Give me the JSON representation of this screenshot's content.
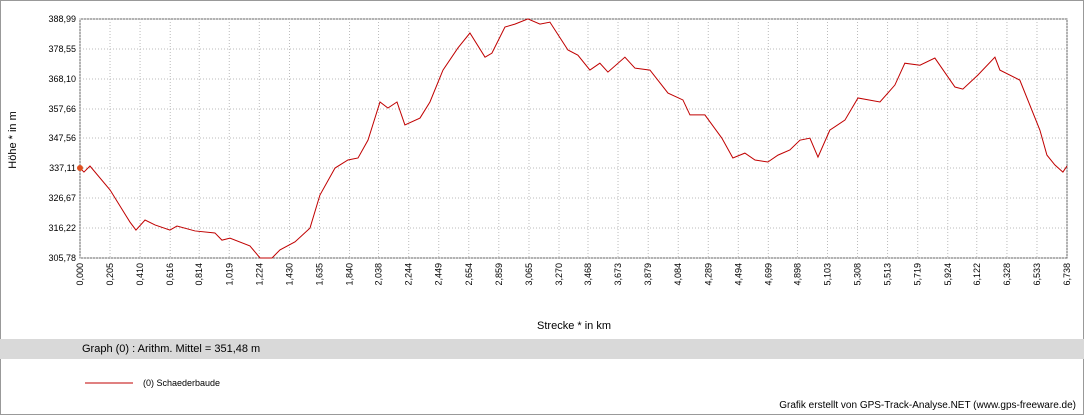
{
  "chart_data": {
    "type": "line",
    "xlabel": "Strecke *  in  km",
    "ylabel": "Höhe *  in  m",
    "stats": "Graph (0) :  Arithm. Mittel = 351,48 m",
    "credit": "Grafik erstellt von GPS-Track-Analyse.NET (www.gps-freeware.de)",
    "grid": true,
    "xlim": [
      0,
      6.738
    ],
    "ylim": [
      305.78,
      388.99
    ],
    "xticks": [
      {
        "value": 0,
        "label": "0,000"
      },
      {
        "value": 0.205,
        "label": "0,205"
      },
      {
        "value": 0.41,
        "label": "0,410"
      },
      {
        "value": 0.616,
        "label": "0,616"
      },
      {
        "value": 0.814,
        "label": "0,814"
      },
      {
        "value": 1.019,
        "label": "1,019"
      },
      {
        "value": 1.224,
        "label": "1,224"
      },
      {
        "value": 1.43,
        "label": "1,430"
      },
      {
        "value": 1.635,
        "label": "1,635"
      },
      {
        "value": 1.84,
        "label": "1,840"
      },
      {
        "value": 2.038,
        "label": "2,038"
      },
      {
        "value": 2.244,
        "label": "2,244"
      },
      {
        "value": 2.449,
        "label": "2,449"
      },
      {
        "value": 2.654,
        "label": "2,654"
      },
      {
        "value": 2.859,
        "label": "2,859"
      },
      {
        "value": 3.065,
        "label": "3,065"
      },
      {
        "value": 3.27,
        "label": "3,270"
      },
      {
        "value": 3.468,
        "label": "3,468"
      },
      {
        "value": 3.673,
        "label": "3,673"
      },
      {
        "value": 3.879,
        "label": "3,879"
      },
      {
        "value": 4.084,
        "label": "4,084"
      },
      {
        "value": 4.289,
        "label": "4,289"
      },
      {
        "value": 4.494,
        "label": "4,494"
      },
      {
        "value": 4.699,
        "label": "4,699"
      },
      {
        "value": 4.898,
        "label": "4,898"
      },
      {
        "value": 5.103,
        "label": "5,103"
      },
      {
        "value": 5.308,
        "label": "5,308"
      },
      {
        "value": 5.513,
        "label": "5,513"
      },
      {
        "value": 5.719,
        "label": "5,719"
      },
      {
        "value": 5.924,
        "label": "5,924"
      },
      {
        "value": 6.122,
        "label": "6,122"
      },
      {
        "value": 6.328,
        "label": "6,328"
      },
      {
        "value": 6.533,
        "label": "6,533"
      },
      {
        "value": 6.738,
        "label": "6,738"
      }
    ],
    "yticks": [
      {
        "value": 305.78,
        "label": "305,78"
      },
      {
        "value": 316.22,
        "label": "316,22"
      },
      {
        "value": 326.67,
        "label": "326,67"
      },
      {
        "value": 337.11,
        "label": "337,11"
      },
      {
        "value": 347.56,
        "label": "347,56"
      },
      {
        "value": 357.66,
        "label": "357,66"
      },
      {
        "value": 368.1,
        "label": "368,10"
      },
      {
        "value": 378.55,
        "label": "378,55"
      },
      {
        "value": 388.99,
        "label": "388,99"
      }
    ],
    "x": [
      0,
      0.027,
      0.068,
      0.205,
      0.341,
      0.382,
      0.444,
      0.512,
      0.614,
      0.662,
      0.785,
      0.921,
      0.969,
      1.024,
      1.16,
      1.229,
      1.311,
      1.365,
      1.468,
      1.57,
      1.638,
      1.741,
      1.829,
      1.898,
      1.966,
      2.048,
      2.102,
      2.164,
      2.218,
      2.321,
      2.389,
      2.478,
      2.58,
      2.662,
      2.765,
      2.812,
      2.901,
      2.969,
      3.058,
      3.14,
      3.208,
      3.331,
      3.399,
      3.481,
      3.549,
      3.604,
      3.72,
      3.788,
      3.891,
      4.014,
      4.116,
      4.164,
      4.266,
      4.382,
      4.457,
      4.539,
      4.608,
      4.696,
      4.765,
      4.846,
      4.915,
      4.983,
      5.038,
      5.119,
      5.222,
      5.311,
      5.461,
      5.563,
      5.631,
      5.734,
      5.836,
      5.973,
      6.027,
      6.13,
      6.246,
      6.28,
      6.416,
      6.553,
      6.601,
      6.655,
      6.71,
      6.738
    ],
    "series": [
      {
        "name": "(0) Schaederbaude",
        "color": "#c00000",
        "values": [
          337.1,
          335.7,
          337.8,
          329.5,
          318.3,
          315.5,
          319.0,
          317.3,
          315.5,
          316.9,
          315.2,
          314.5,
          312.0,
          312.7,
          310.0,
          305.8,
          305.8,
          308.6,
          311.4,
          316.2,
          327.7,
          337.1,
          339.9,
          340.6,
          346.8,
          360.1,
          358.0,
          360.1,
          352.1,
          354.5,
          360.1,
          371.2,
          378.9,
          384.1,
          375.7,
          377.1,
          386.2,
          387.2,
          389.0,
          387.2,
          387.9,
          378.2,
          376.4,
          371.2,
          373.6,
          370.5,
          375.7,
          371.9,
          371.2,
          363.2,
          360.8,
          355.6,
          355.6,
          347.5,
          340.6,
          342.3,
          339.9,
          339.2,
          341.6,
          343.4,
          346.8,
          347.5,
          340.9,
          350.3,
          353.8,
          361.5,
          360.1,
          366.0,
          373.6,
          372.9,
          375.4,
          365.3,
          364.6,
          369.5,
          375.7,
          371.2,
          367.7,
          350.3,
          341.6,
          338.2,
          335.7,
          337.8
        ]
      }
    ]
  }
}
